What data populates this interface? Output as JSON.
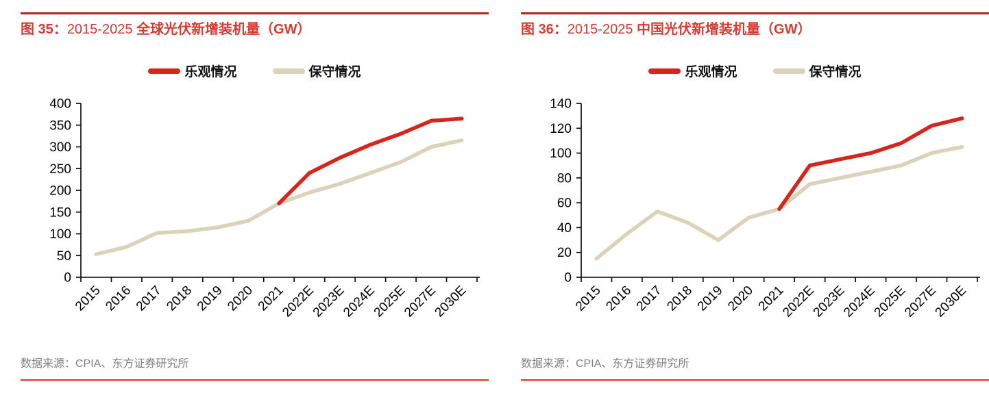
{
  "panels": [
    {
      "title_prefix": "图 35：",
      "title_mid": "2015-2025 ",
      "title_main": "全球光伏新增装机量（GW）",
      "source": "数据来源：CPIA、东方证券研究所"
    },
    {
      "title_prefix": "图 36：",
      "title_mid": "2015-2025 ",
      "title_main": "中国光伏新增装机量（GW）",
      "source": "数据来源：CPIA、东方证券研究所"
    }
  ],
  "colors": {
    "optimistic_red": "#d8251c",
    "conservative_beige": "#dbd2ba",
    "title_red": "#d93a31",
    "top_rule_red": "#be1f12",
    "bottom_rule_red": "#e2301d",
    "source_gray": "#808080",
    "axis_black": "#000000"
  },
  "chart_data": [
    {
      "type": "line",
      "title": "图 35：2015-2025 全球光伏新增装机量（GW）",
      "categories": [
        "2015",
        "2016",
        "2017",
        "2018",
        "2019",
        "2020",
        "2021",
        "2022E",
        "2023E",
        "2024E",
        "2025E",
        "2027E",
        "2030E"
      ],
      "series": [
        {
          "name": "乐观情况",
          "color": "#d8251c",
          "values": [
            null,
            null,
            null,
            null,
            null,
            null,
            170,
            240,
            275,
            305,
            330,
            360,
            365
          ]
        },
        {
          "name": "保守情况",
          "color": "#dbd2ba",
          "values": [
            53,
            70,
            102,
            106,
            115,
            130,
            170,
            195,
            215,
            240,
            265,
            300,
            315
          ]
        }
      ],
      "xlabel": "",
      "ylabel": "",
      "ylim": [
        0,
        400
      ],
      "ytick": 50,
      "grid": false,
      "legend_position": "top"
    },
    {
      "type": "line",
      "title": "图 36：2015-2025 中国光伏新增装机量（GW）",
      "categories": [
        "2015",
        "2016",
        "2017",
        "2018",
        "2019",
        "2020",
        "2021",
        "2022E",
        "2023E",
        "2024E",
        "2025E",
        "2027E",
        "2030E"
      ],
      "series": [
        {
          "name": "乐观情况",
          "color": "#d8251c",
          "values": [
            null,
            null,
            null,
            null,
            null,
            null,
            55,
            90,
            95,
            100,
            108,
            122,
            128
          ]
        },
        {
          "name": "保守情况",
          "color": "#dbd2ba",
          "values": [
            15,
            35,
            53,
            44,
            30,
            48,
            55,
            75,
            80,
            85,
            90,
            100,
            105
          ]
        }
      ],
      "xlabel": "",
      "ylabel": "",
      "ylim": [
        0,
        140
      ],
      "ytick": 20,
      "grid": false,
      "legend_position": "top"
    }
  ]
}
